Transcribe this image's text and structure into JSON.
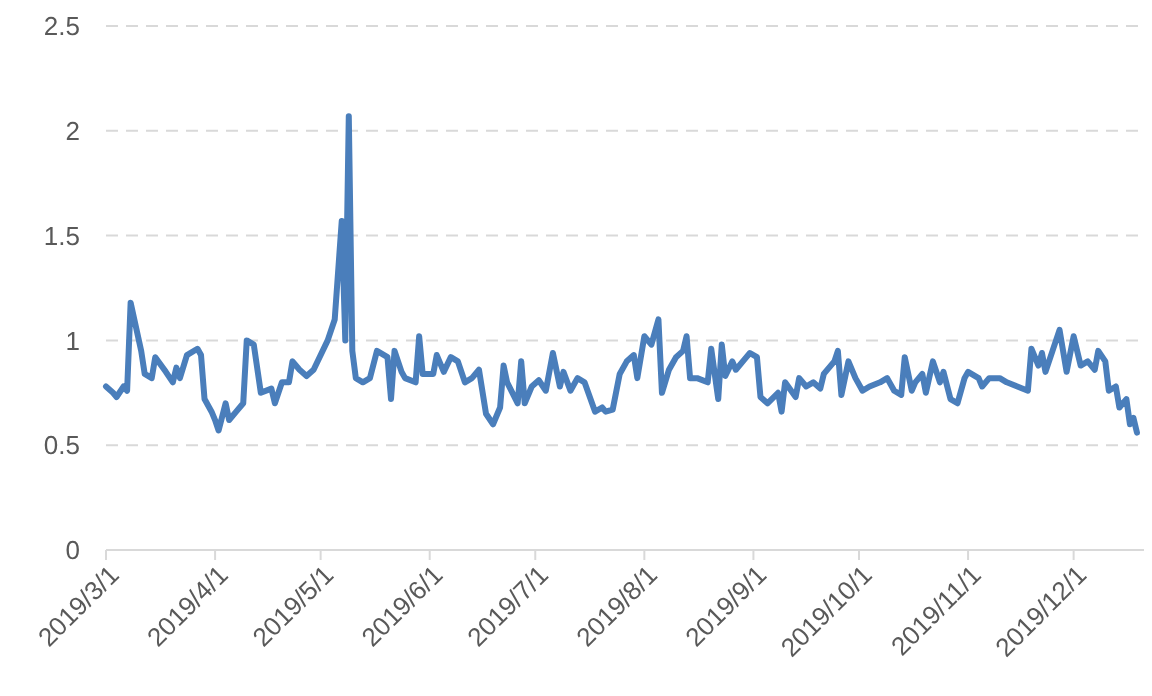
{
  "chart_data": {
    "type": "line",
    "grid": "y",
    "line_style": "solid",
    "marker": "none",
    "xlim": [
      "2019-03-01",
      "2019-12-21"
    ],
    "ylim": [
      0,
      2.5
    ],
    "yticks": [
      0,
      0.5,
      1,
      1.5,
      2,
      2.5
    ],
    "xticks": [
      {
        "value": "2019-03-01",
        "label": "2019/3/1"
      },
      {
        "value": "2019-04-01",
        "label": "2019/4/1"
      },
      {
        "value": "2019-05-01",
        "label": "2019/5/1"
      },
      {
        "value": "2019-06-01",
        "label": "2019/6/1"
      },
      {
        "value": "2019-07-01",
        "label": "2019/7/1"
      },
      {
        "value": "2019-08-01",
        "label": "2019/8/1"
      },
      {
        "value": "2019-09-01",
        "label": "2019/9/1"
      },
      {
        "value": "2019-10-01",
        "label": "2019/10/1"
      },
      {
        "value": "2019-11-01",
        "label": "2019/11/1"
      },
      {
        "value": "2019-12-01",
        "label": "2019/12/1"
      }
    ],
    "x": [
      "2019-03-01",
      "2019-03-03",
      "2019-03-04",
      "2019-03-06",
      "2019-03-07",
      "2019-03-08",
      "2019-03-11",
      "2019-03-12",
      "2019-03-14",
      "2019-03-15",
      "2019-03-18",
      "2019-03-20",
      "2019-03-21",
      "2019-03-22",
      "2019-03-24",
      "2019-03-27",
      "2019-03-28",
      "2019-03-29",
      "2019-03-31",
      "2019-04-01",
      "2019-04-02",
      "2019-04-04",
      "2019-04-05",
      "2019-04-07",
      "2019-04-09",
      "2019-04-10",
      "2019-04-12",
      "2019-04-14",
      "2019-04-17",
      "2019-04-18",
      "2019-04-20",
      "2019-04-22",
      "2019-04-23",
      "2019-04-25",
      "2019-04-27",
      "2019-04-29",
      "2019-05-03",
      "2019-05-05",
      "2019-05-07",
      "2019-05-08",
      "2019-05-09",
      "2019-05-10",
      "2019-05-11",
      "2019-05-13",
      "2019-05-15",
      "2019-05-17",
      "2019-05-20",
      "2019-05-21",
      "2019-05-22",
      "2019-05-24",
      "2019-05-25",
      "2019-05-28",
      "2019-05-29",
      "2019-05-30",
      "2019-06-02",
      "2019-06-03",
      "2019-06-05",
      "2019-06-07",
      "2019-06-09",
      "2019-06-11",
      "2019-06-13",
      "2019-06-15",
      "2019-06-17",
      "2019-06-19",
      "2019-06-21",
      "2019-06-22",
      "2019-06-23",
      "2019-06-26",
      "2019-06-27",
      "2019-06-28",
      "2019-06-30",
      "2019-07-02",
      "2019-07-04",
      "2019-07-06",
      "2019-07-08",
      "2019-07-09",
      "2019-07-11",
      "2019-07-13",
      "2019-07-15",
      "2019-07-18",
      "2019-07-20",
      "2019-07-21",
      "2019-07-23",
      "2019-07-25",
      "2019-07-27",
      "2019-07-29",
      "2019-07-30",
      "2019-08-01",
      "2019-08-03",
      "2019-08-05",
      "2019-08-06",
      "2019-08-08",
      "2019-08-10",
      "2019-08-12",
      "2019-08-13",
      "2019-08-14",
      "2019-08-16",
      "2019-08-19",
      "2019-08-20",
      "2019-08-22",
      "2019-08-23",
      "2019-08-24",
      "2019-08-26",
      "2019-08-27",
      "2019-08-30",
      "2019-08-31",
      "2019-09-02",
      "2019-09-03",
      "2019-09-05",
      "2019-09-08",
      "2019-09-09",
      "2019-09-10",
      "2019-09-13",
      "2019-09-14",
      "2019-09-16",
      "2019-09-18",
      "2019-09-20",
      "2019-09-21",
      "2019-09-24",
      "2019-09-25",
      "2019-09-26",
      "2019-09-28",
      "2019-09-30",
      "2019-10-02",
      "2019-10-04",
      "2019-10-07",
      "2019-10-09",
      "2019-10-11",
      "2019-10-13",
      "2019-10-14",
      "2019-10-16",
      "2019-10-17",
      "2019-10-19",
      "2019-10-20",
      "2019-10-22",
      "2019-10-24",
      "2019-10-25",
      "2019-10-27",
      "2019-10-29",
      "2019-10-31",
      "2019-11-01",
      "2019-11-04",
      "2019-11-05",
      "2019-11-07",
      "2019-11-10",
      "2019-11-12",
      "2019-11-15",
      "2019-11-18",
      "2019-11-19",
      "2019-11-21",
      "2019-11-22",
      "2019-11-23",
      "2019-11-25",
      "2019-11-27",
      "2019-11-29",
      "2019-12-01",
      "2019-12-03",
      "2019-12-05",
      "2019-12-07",
      "2019-12-08",
      "2019-12-10",
      "2019-12-11",
      "2019-12-13",
      "2019-12-14",
      "2019-12-16",
      "2019-12-17",
      "2019-12-18",
      "2019-12-19"
    ],
    "series": [
      {
        "color": "#4a7ebb",
        "values": [
          0.78,
          0.75,
          0.73,
          0.78,
          0.76,
          1.18,
          0.95,
          0.84,
          0.82,
          0.92,
          0.85,
          0.8,
          0.87,
          0.82,
          0.93,
          0.96,
          0.93,
          0.72,
          0.66,
          0.62,
          0.57,
          0.7,
          0.62,
          0.66,
          0.7,
          1.0,
          0.98,
          0.75,
          0.77,
          0.7,
          0.8,
          0.8,
          0.9,
          0.86,
          0.83,
          0.86,
          1.0,
          1.1,
          1.57,
          1.0,
          2.07,
          0.95,
          0.82,
          0.8,
          0.82,
          0.95,
          0.92,
          0.72,
          0.95,
          0.85,
          0.82,
          0.8,
          1.02,
          0.84,
          0.84,
          0.93,
          0.85,
          0.92,
          0.9,
          0.8,
          0.82,
          0.86,
          0.65,
          0.6,
          0.68,
          0.88,
          0.8,
          0.7,
          0.9,
          0.7,
          0.78,
          0.81,
          0.76,
          0.94,
          0.78,
          0.85,
          0.76,
          0.82,
          0.8,
          0.66,
          0.68,
          0.66,
          0.67,
          0.84,
          0.9,
          0.93,
          0.82,
          1.02,
          0.98,
          1.1,
          0.75,
          0.86,
          0.92,
          0.95,
          1.02,
          0.82,
          0.82,
          0.8,
          0.96,
          0.72,
          0.98,
          0.83,
          0.9,
          0.86,
          0.92,
          0.94,
          0.92,
          0.73,
          0.7,
          0.75,
          0.66,
          0.8,
          0.73,
          0.82,
          0.78,
          0.8,
          0.77,
          0.84,
          0.9,
          0.95,
          0.74,
          0.9,
          0.82,
          0.76,
          0.78,
          0.8,
          0.82,
          0.76,
          0.74,
          0.92,
          0.76,
          0.8,
          0.84,
          0.75,
          0.9,
          0.8,
          0.85,
          0.72,
          0.7,
          0.82,
          0.85,
          0.82,
          0.78,
          0.82,
          0.82,
          0.8,
          0.78,
          0.76,
          0.96,
          0.88,
          0.94,
          0.85,
          0.95,
          1.05,
          0.85,
          1.02,
          0.88,
          0.9,
          0.86,
          0.95,
          0.9,
          0.76,
          0.78,
          0.68,
          0.72,
          0.6,
          0.63,
          0.56
        ]
      }
    ]
  }
}
